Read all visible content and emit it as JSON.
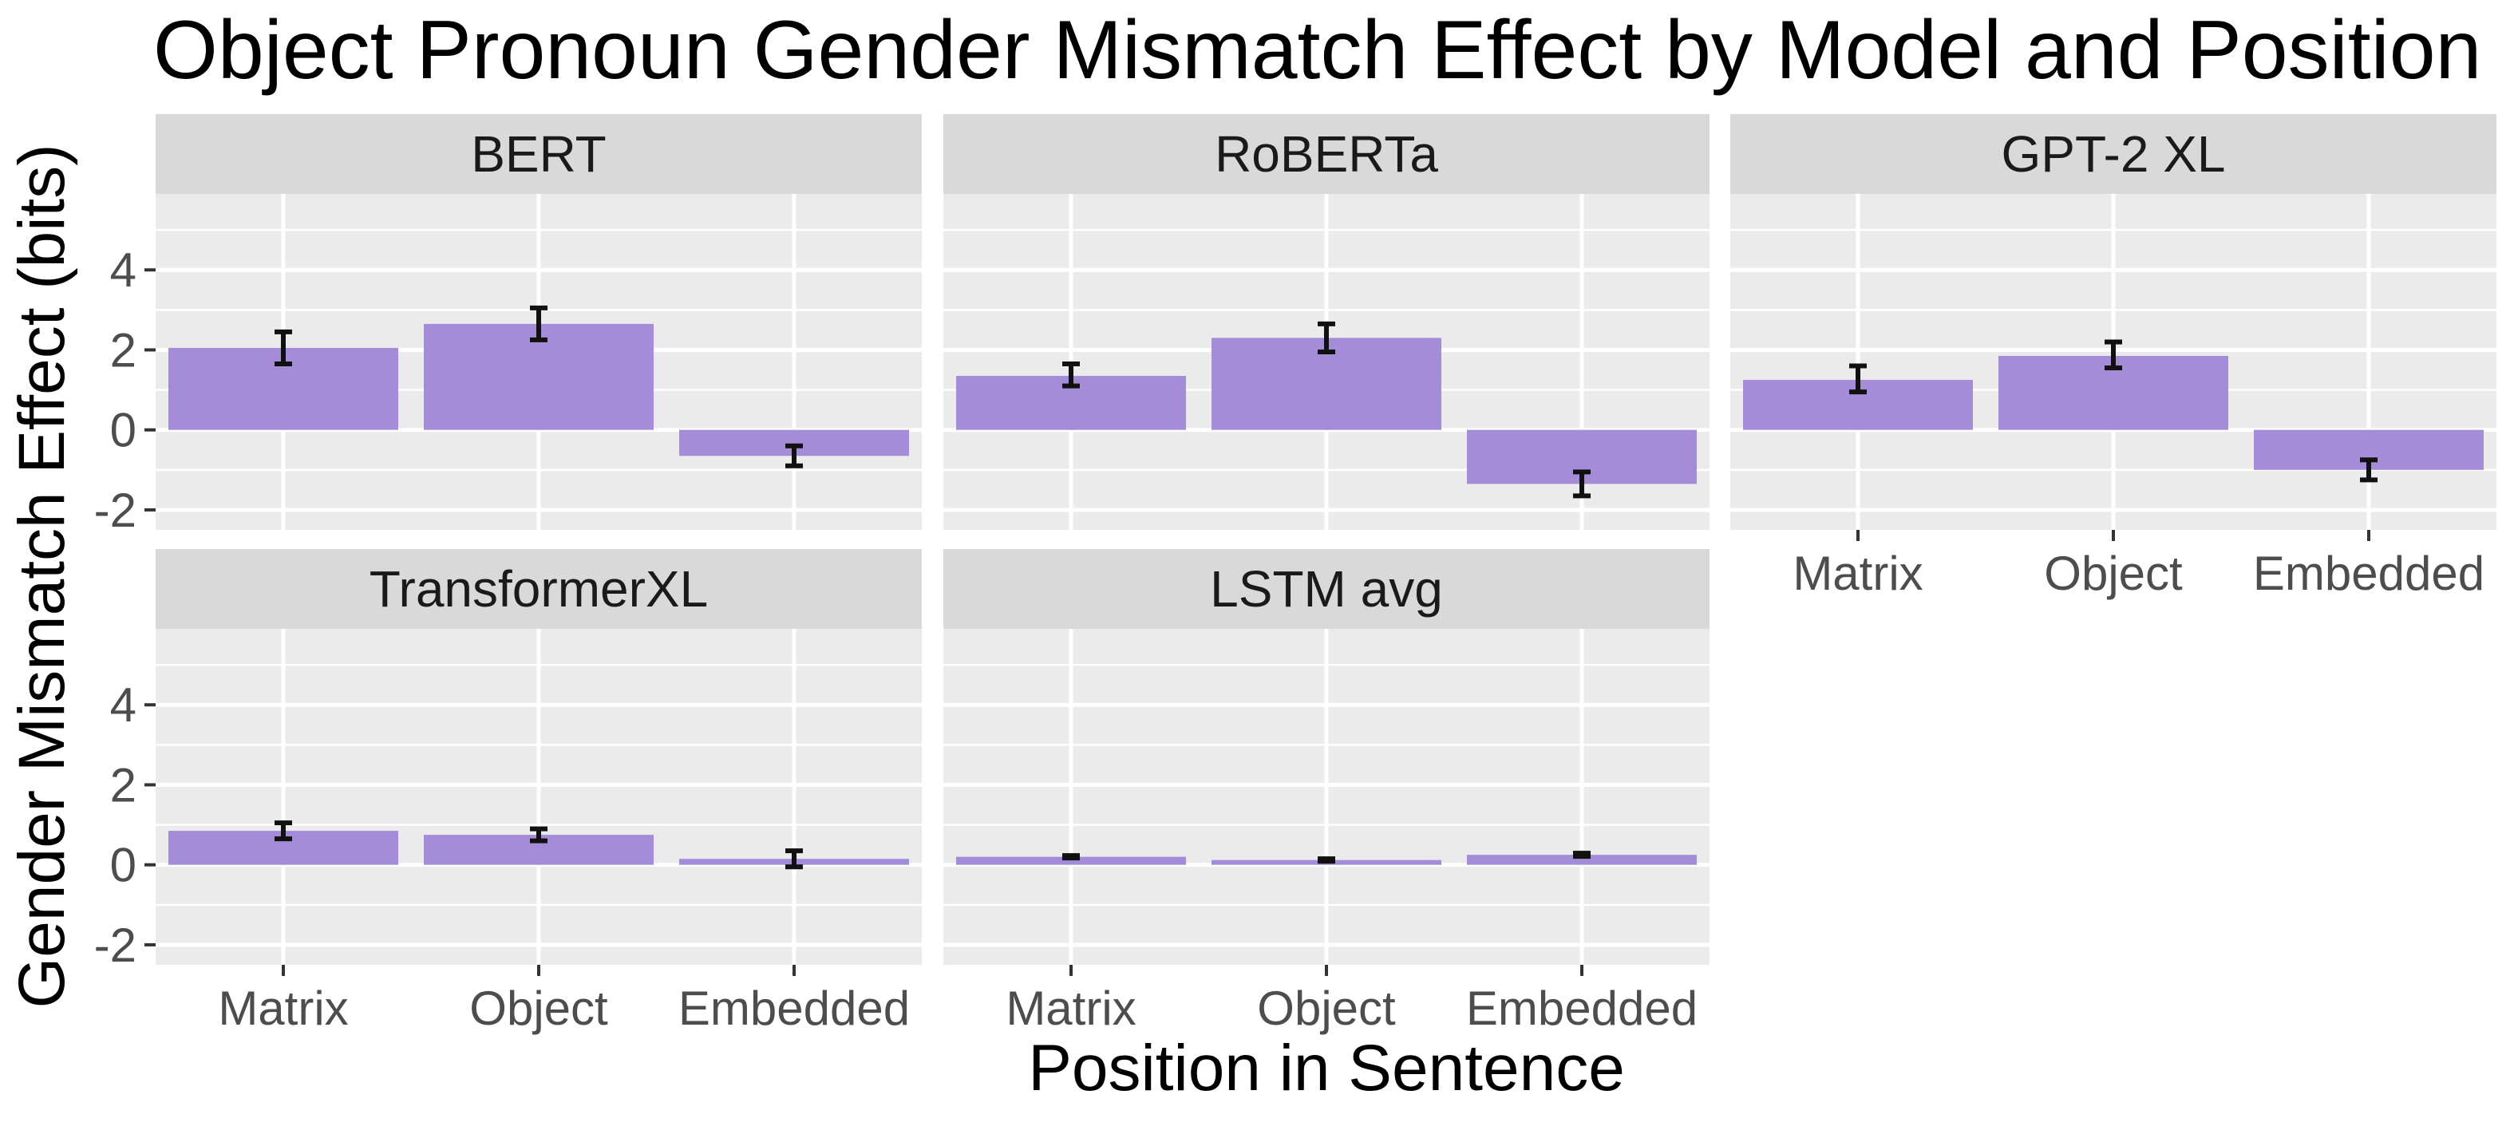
{
  "chart_data": {
    "type": "bar",
    "title": "Object Pronoun Gender Mismatch Effect by Model and Position",
    "xlabel": "Position in Sentence",
    "ylabel": "Gender Mismatch Effect (bits)",
    "categories": [
      "Matrix",
      "Object",
      "Embedded"
    ],
    "yticks": [
      "-2",
      "0",
      "2",
      "4"
    ],
    "ylim": [
      -2.5,
      5.9
    ],
    "bar_color": "#a48cd8",
    "panel_background": "#ebebeb",
    "strip_background": "#d9d9d9",
    "grid": true,
    "panels": [
      {
        "name": "BERT",
        "values": [
          2.05,
          2.65,
          -0.65
        ],
        "error_low": [
          1.65,
          2.25,
          -0.9
        ],
        "error_high": [
          2.45,
          3.05,
          -0.4
        ]
      },
      {
        "name": "RoBERTa",
        "values": [
          1.35,
          2.3,
          -1.35
        ],
        "error_low": [
          1.1,
          1.95,
          -1.65
        ],
        "error_high": [
          1.65,
          2.65,
          -1.05
        ]
      },
      {
        "name": "GPT-2 XL",
        "values": [
          1.25,
          1.85,
          -1.0
        ],
        "error_low": [
          0.95,
          1.55,
          -1.25
        ],
        "error_high": [
          1.6,
          2.2,
          -0.75
        ]
      },
      {
        "name": "TransformerXL",
        "values": [
          0.85,
          0.75,
          0.15
        ],
        "error_low": [
          0.65,
          0.6,
          -0.05
        ],
        "error_high": [
          1.05,
          0.9,
          0.35
        ]
      },
      {
        "name": "LSTM avg",
        "values": [
          0.2,
          0.12,
          0.25
        ],
        "error_low": [
          0.17,
          0.09,
          0.21
        ],
        "error_high": [
          0.23,
          0.15,
          0.29
        ]
      }
    ]
  }
}
